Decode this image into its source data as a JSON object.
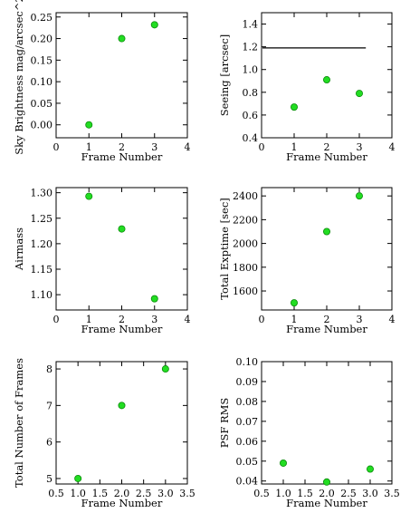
{
  "chart_data": [
    {
      "type": "scatter",
      "xlabel": "Frame Number",
      "ylabel": "Sky Brightness mag/arcsec^2",
      "xlim": [
        0,
        4
      ],
      "ylim": [
        -0.03,
        0.26
      ],
      "xticks": [
        0,
        1,
        2,
        3,
        4
      ],
      "xtick_labels": [
        "0",
        "1",
        "2",
        "3",
        "4"
      ],
      "yticks": [
        0.0,
        0.05,
        0.1,
        0.15,
        0.2,
        0.25
      ],
      "ytick_labels": [
        "0.00",
        "0.05",
        "0.10",
        "0.15",
        "0.20",
        "0.25"
      ],
      "x": [
        1,
        2,
        3
      ],
      "y": [
        0.0,
        0.2,
        0.232
      ],
      "grid": false
    },
    {
      "type": "scatter",
      "xlabel": "Frame Number",
      "ylabel": "Seeing [arcsec]",
      "xlim": [
        0,
        4
      ],
      "ylim": [
        0.4,
        1.5
      ],
      "xticks": [
        0,
        1,
        2,
        3,
        4
      ],
      "xtick_labels": [
        "0",
        "1",
        "2",
        "3",
        "4"
      ],
      "yticks": [
        0.4,
        0.6,
        0.8,
        1.0,
        1.2,
        1.4
      ],
      "ytick_labels": [
        "0.4",
        "0.6",
        "0.8",
        "1.0",
        "1.2",
        "1.4"
      ],
      "x": [
        1,
        2,
        3
      ],
      "y": [
        0.67,
        0.91,
        0.79
      ],
      "reference_line": {
        "y": 1.19,
        "x_from": 0,
        "x_to": 3.2
      },
      "grid": false
    },
    {
      "type": "scatter",
      "xlabel": "Frame Number",
      "ylabel": "Airmass",
      "xlim": [
        0,
        4
      ],
      "ylim": [
        1.07,
        1.31
      ],
      "xticks": [
        0,
        1,
        2,
        3,
        4
      ],
      "xtick_labels": [
        "0",
        "1",
        "2",
        "3",
        "4"
      ],
      "yticks": [
        1.1,
        1.15,
        1.2,
        1.25,
        1.3
      ],
      "ytick_labels": [
        "1.10",
        "1.15",
        "1.20",
        "1.25",
        "1.30"
      ],
      "x": [
        1,
        2,
        3
      ],
      "y": [
        1.293,
        1.229,
        1.092
      ],
      "grid": false
    },
    {
      "type": "scatter",
      "xlabel": "Frame Number",
      "ylabel": "Total Exptime [sec]",
      "xlim": [
        0,
        4
      ],
      "ylim": [
        1440,
        2470
      ],
      "xticks": [
        0,
        1,
        2,
        3,
        4
      ],
      "xtick_labels": [
        "0",
        "1",
        "2",
        "3",
        "4"
      ],
      "yticks": [
        1600,
        1800,
        2000,
        2200,
        2400
      ],
      "ytick_labels": [
        "1600",
        "1800",
        "2000",
        "2200",
        "2400"
      ],
      "x": [
        1,
        2,
        3
      ],
      "y": [
        1500,
        2100,
        2400
      ],
      "grid": false
    },
    {
      "type": "scatter",
      "xlabel": "Frame Number",
      "ylabel": "Total Number of Frames",
      "xlim": [
        0.5,
        3.5
      ],
      "ylim": [
        4.85,
        8.2
      ],
      "xticks": [
        0.5,
        1.0,
        1.5,
        2.0,
        2.5,
        3.0,
        3.5
      ],
      "xtick_labels": [
        "0.5",
        "1.0",
        "1.5",
        "2.0",
        "2.5",
        "3.0",
        "3.5"
      ],
      "yticks": [
        5,
        6,
        7,
        8
      ],
      "ytick_labels": [
        "5",
        "6",
        "7",
        "8"
      ],
      "x": [
        1,
        2,
        3
      ],
      "y": [
        5,
        7,
        8
      ],
      "grid": false
    },
    {
      "type": "scatter",
      "xlabel": "Frame Number",
      "ylabel": "PSF RMS",
      "xlim": [
        0.5,
        3.5
      ],
      "ylim": [
        0.0385,
        0.1
      ],
      "xticks": [
        0.5,
        1.0,
        1.5,
        2.0,
        2.5,
        3.0,
        3.5
      ],
      "xtick_labels": [
        "0.5",
        "1.0",
        "1.5",
        "2.0",
        "2.5",
        "3.0",
        "3.5"
      ],
      "yticks": [
        0.04,
        0.05,
        0.06,
        0.07,
        0.08,
        0.09,
        0.1
      ],
      "ytick_labels": [
        "0.04",
        "0.05",
        "0.06",
        "0.07",
        "0.08",
        "0.09",
        "0.10"
      ],
      "x": [
        1,
        2,
        3
      ],
      "y": [
        0.049,
        0.0395,
        0.046
      ],
      "grid": false
    }
  ]
}
